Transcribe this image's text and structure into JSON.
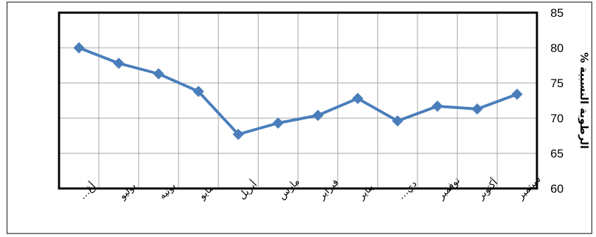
{
  "chart_data": {
    "type": "line",
    "categories": [
      "أغ…",
      "يوليو",
      "يونيه",
      "مايو",
      "أبريل",
      "مارس",
      "فبراير",
      "يناير",
      "دي…",
      "نوفمبر",
      "أكتوبر",
      "سبتمبر"
    ],
    "series": [
      {
        "values": [
          80.0,
          77.8,
          76.3,
          73.8,
          67.7,
          69.3,
          70.4,
          72.8,
          69.6,
          71.7,
          71.3,
          73.4
        ],
        "color": "#4a7ebb"
      }
    ],
    "title": "",
    "xlabel": "",
    "ylabel": "الرطوبة النسبية %",
    "ylim": [
      60,
      85
    ],
    "y_ticks": [
      "60",
      "65",
      "70",
      "75",
      "80",
      "85"
    ],
    "y_axis_side": "right",
    "grid": true,
    "marker": "diamond"
  }
}
